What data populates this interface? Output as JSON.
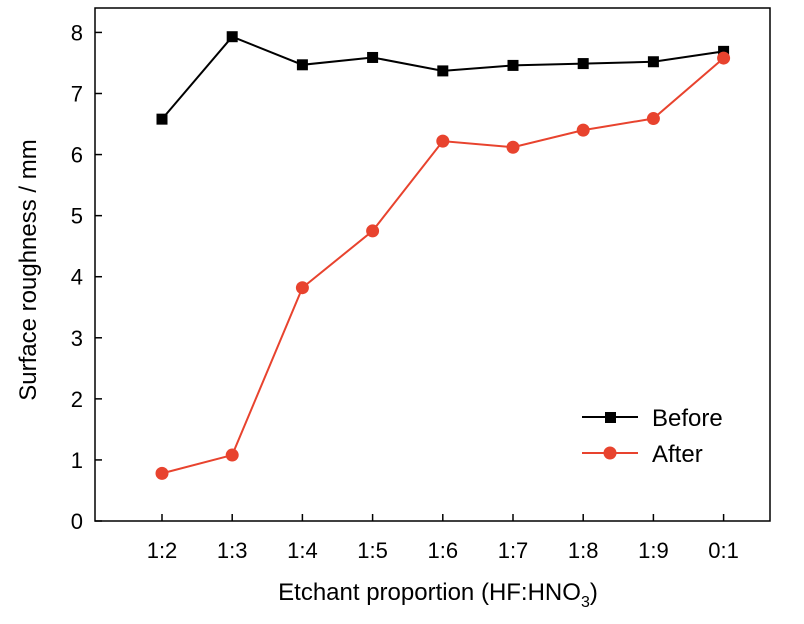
{
  "chart_data": {
    "type": "line",
    "categories": [
      "1:2",
      "1:3",
      "1:4",
      "1:5",
      "1:6",
      "1:7",
      "1:8",
      "1:9",
      "0:1"
    ],
    "series": [
      {
        "name": "Before",
        "color": "#000000",
        "marker": "square",
        "values": [
          6.58,
          7.93,
          7.47,
          7.59,
          7.37,
          7.46,
          7.49,
          7.52,
          7.69
        ]
      },
      {
        "name": "After",
        "color": "#e8432e",
        "marker": "circle",
        "values": [
          0.78,
          1.08,
          3.82,
          4.75,
          6.22,
          6.12,
          6.4,
          6.59,
          7.58
        ]
      }
    ],
    "xlabel": {
      "main": "Etchant proportion (HF:HNO",
      "subscript": "3",
      "close": ")"
    },
    "ylabel": "Surface roughness / mm",
    "ylim": [
      0,
      8.4
    ],
    "yticks": [
      "0",
      "1",
      "2",
      "3",
      "4",
      "5",
      "6",
      "7",
      "8"
    ],
    "grid": false,
    "legend_position": "bottom-right"
  }
}
